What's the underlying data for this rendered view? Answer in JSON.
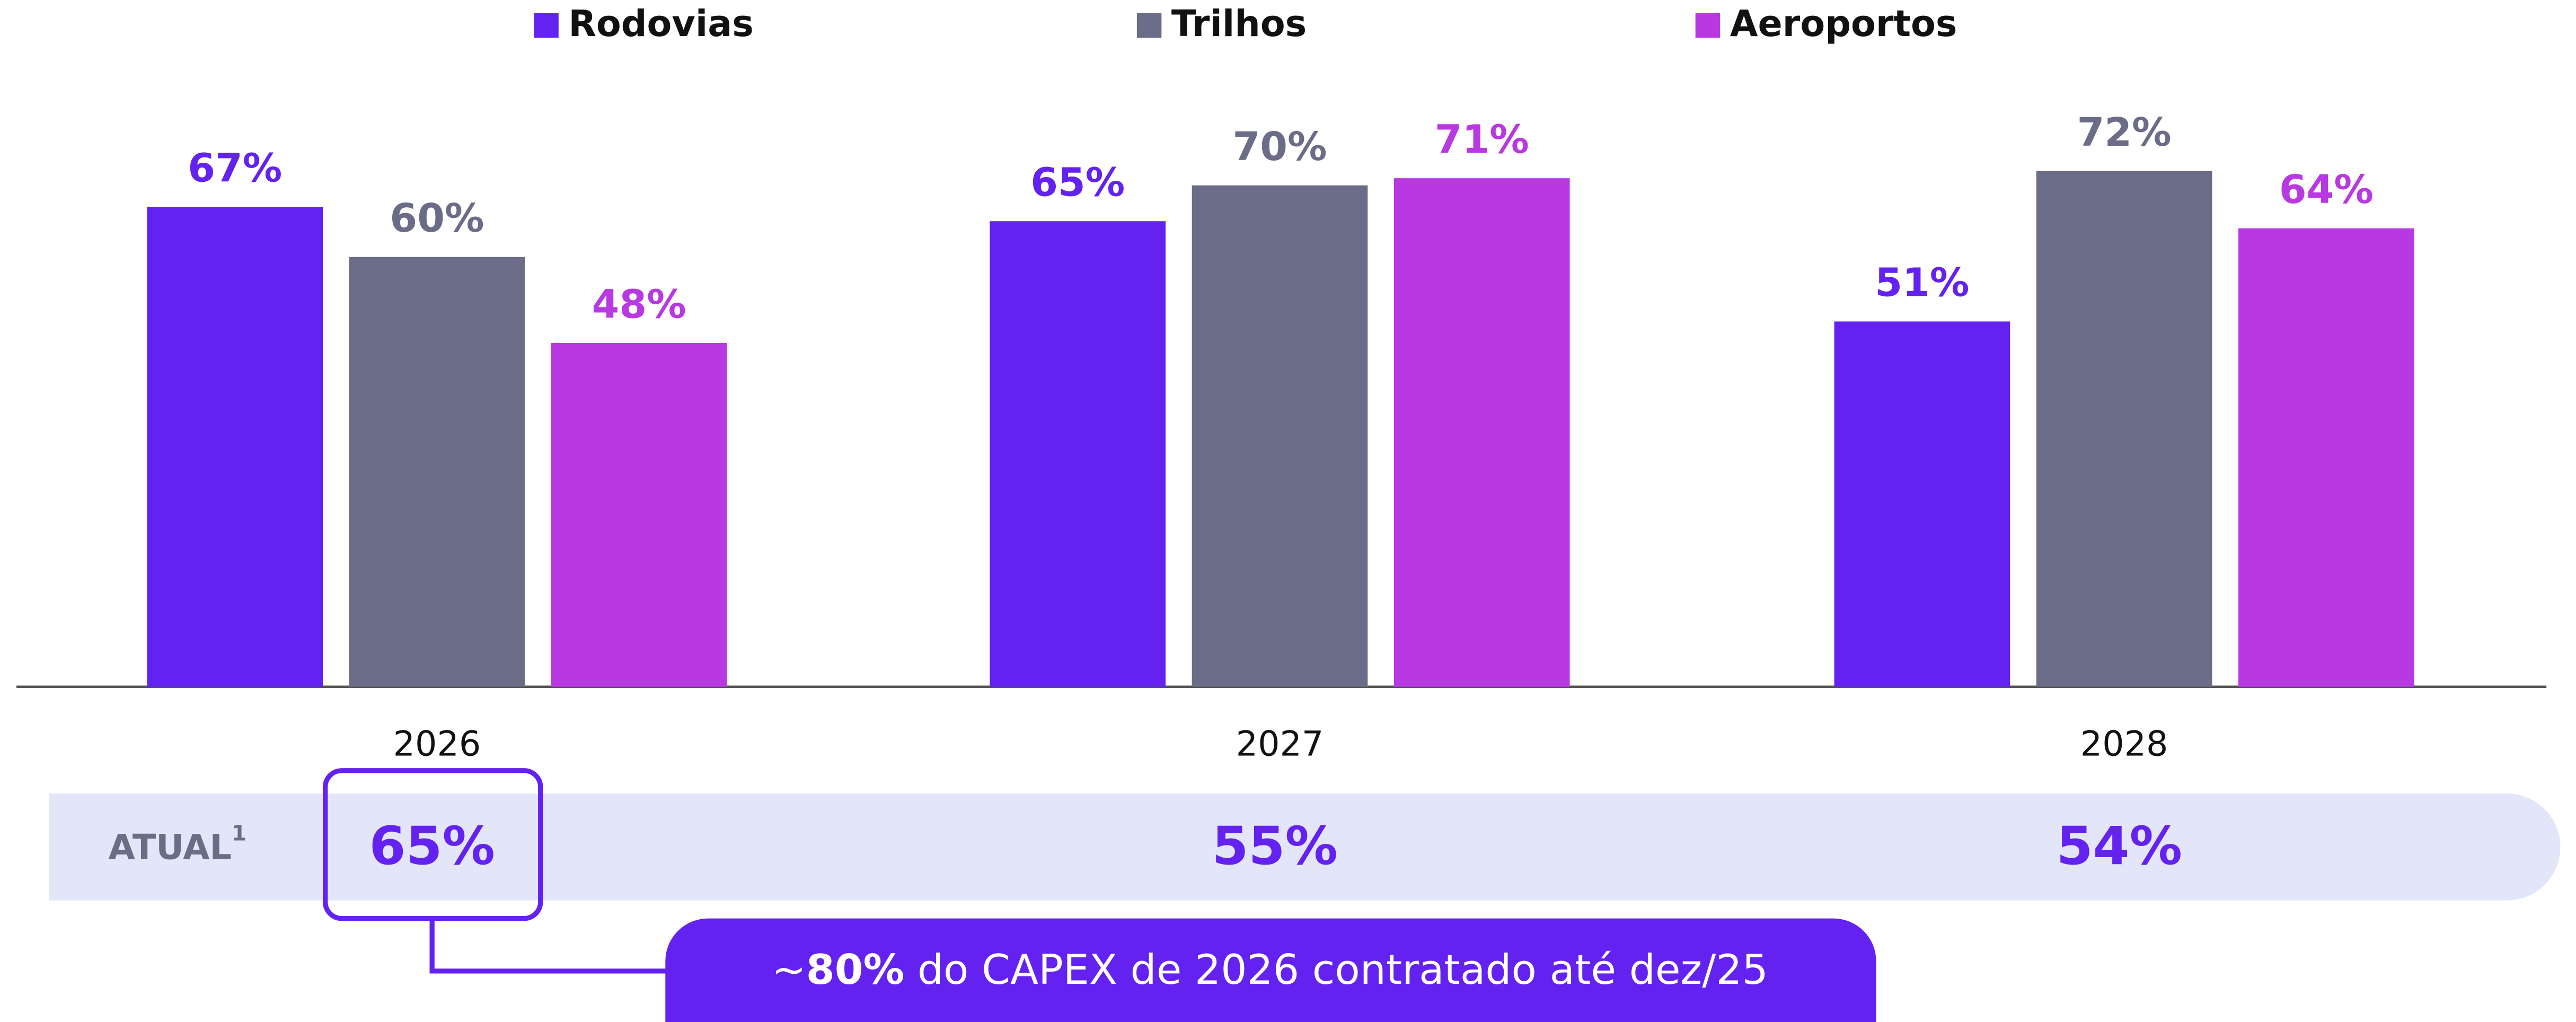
{
  "chart_data": {
    "type": "bar",
    "categories": [
      "2026",
      "2027",
      "2028"
    ],
    "series": [
      {
        "name": "Rodovias",
        "color": "#6322f0",
        "values": [
          67,
          65,
          51
        ],
        "value_labels": [
          "67%",
          "65%",
          "51%"
        ]
      },
      {
        "name": "Trilhos",
        "color": "#6b6c87",
        "values": [
          60,
          70,
          72
        ],
        "value_labels": [
          "60%",
          "70%",
          "72%"
        ]
      },
      {
        "name": "Aeroportos",
        "color": "#b838e2",
        "values": [
          48,
          71,
          64
        ],
        "value_labels": [
          "48%",
          "71%",
          "64%"
        ]
      }
    ],
    "ylim": [
      0,
      100
    ],
    "legend": "top"
  },
  "summary_row": {
    "label": "ATUAL",
    "footnote": "1",
    "values": [
      "65%",
      "55%",
      "54%"
    ]
  },
  "callout": {
    "prefix": "~",
    "bold": "80%",
    "text": " do CAPEX de 2026 contratado até dez/25"
  }
}
